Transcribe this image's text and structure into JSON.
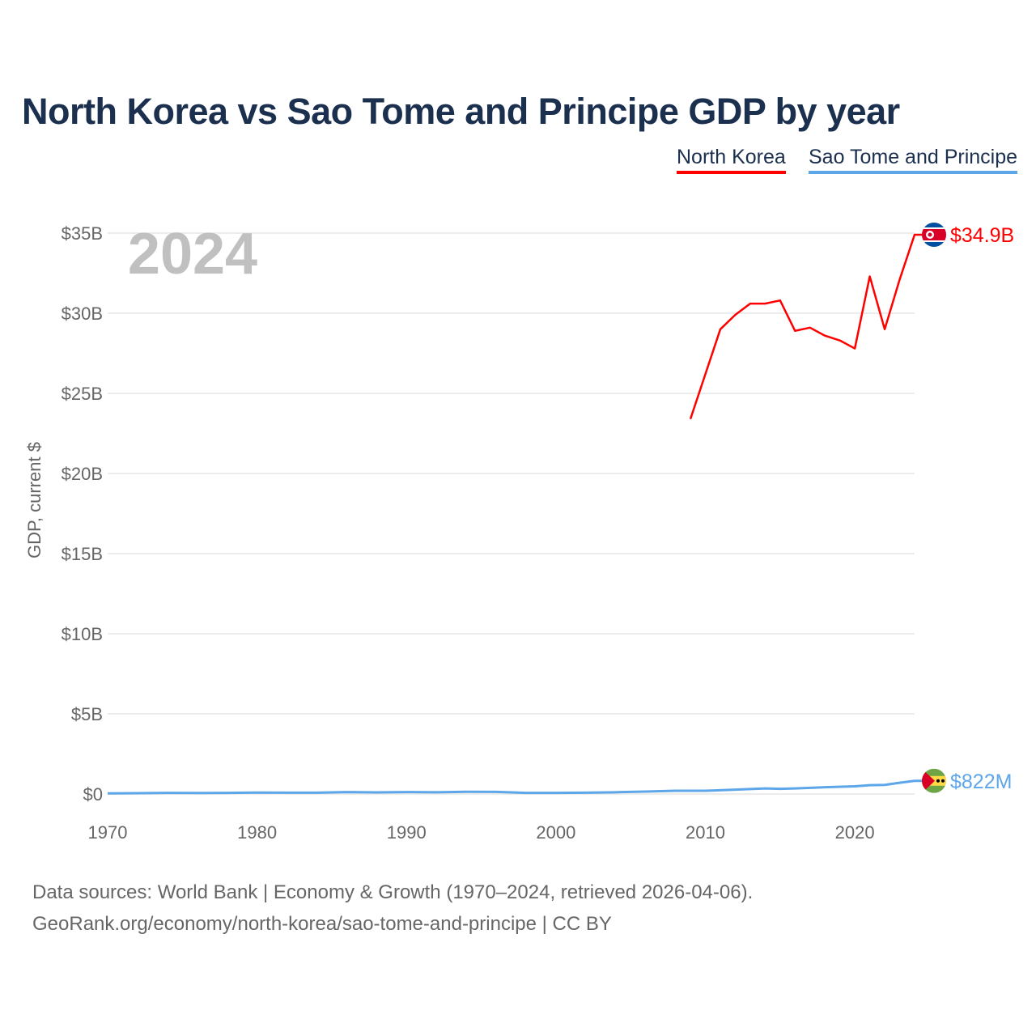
{
  "title": "North Korea vs Sao Tome and Principe GDP by year",
  "legend": [
    "North Korea",
    "Sao Tome and Principe"
  ],
  "source_line1": "Data sources: World Bank | Economy & Growth (1970–2024, retrieved 2026-04-06).",
  "source_line2": "GeoRank.org/economy/north-korea/sao-tome-and-principe | CC BY",
  "chart_data": {
    "type": "line",
    "title": "North Korea vs Sao Tome and Principe GDP by year",
    "xlabel": "",
    "ylabel": "GDP, current $",
    "year_label": "2024",
    "xlim": [
      1970,
      2024
    ],
    "ylim": [
      0,
      35
    ],
    "x_ticks": [
      1970,
      1980,
      1990,
      2000,
      2010,
      2020
    ],
    "y_ticks": [
      {
        "v": 0,
        "label": "$0"
      },
      {
        "v": 5,
        "label": "$5B"
      },
      {
        "v": 10,
        "label": "$10B"
      },
      {
        "v": 15,
        "label": "$15B"
      },
      {
        "v": 20,
        "label": "$20B"
      },
      {
        "v": 25,
        "label": "$25B"
      },
      {
        "v": 30,
        "label": "$30B"
      },
      {
        "v": 35,
        "label": "$35B"
      }
    ],
    "grid": true,
    "series": [
      {
        "name": "North Korea",
        "color": "#ff0000",
        "end_label": "$34.9B",
        "flag": "north-korea-flag",
        "x": [
          2009,
          2010,
          2011,
          2012,
          2013,
          2014,
          2015,
          2016,
          2017,
          2018,
          2019,
          2020,
          2021,
          2022,
          2023,
          2024
        ],
        "values": [
          23.4,
          26.2,
          29.0,
          29.9,
          30.6,
          30.6,
          30.8,
          28.9,
          29.1,
          28.6,
          28.3,
          27.8,
          32.3,
          29.0,
          32.1,
          34.9
        ]
      },
      {
        "name": "Sao Tome and Principe",
        "color": "#5ea6ea",
        "end_label": "$822M",
        "flag": "sao-tome-flag",
        "x": [
          1970,
          1972,
          1974,
          1976,
          1978,
          1980,
          1982,
          1984,
          1986,
          1988,
          1990,
          1992,
          1994,
          1996,
          1998,
          2000,
          2002,
          2004,
          2006,
          2008,
          2010,
          2012,
          2014,
          2015,
          2016,
          2018,
          2020,
          2021,
          2022,
          2023,
          2024
        ],
        "values": [
          0.04,
          0.05,
          0.07,
          0.06,
          0.07,
          0.09,
          0.08,
          0.08,
          0.12,
          0.1,
          0.12,
          0.11,
          0.14,
          0.13,
          0.07,
          0.07,
          0.08,
          0.11,
          0.15,
          0.2,
          0.2,
          0.27,
          0.35,
          0.32,
          0.35,
          0.42,
          0.48,
          0.55,
          0.57,
          0.7,
          0.82
        ]
      }
    ]
  }
}
